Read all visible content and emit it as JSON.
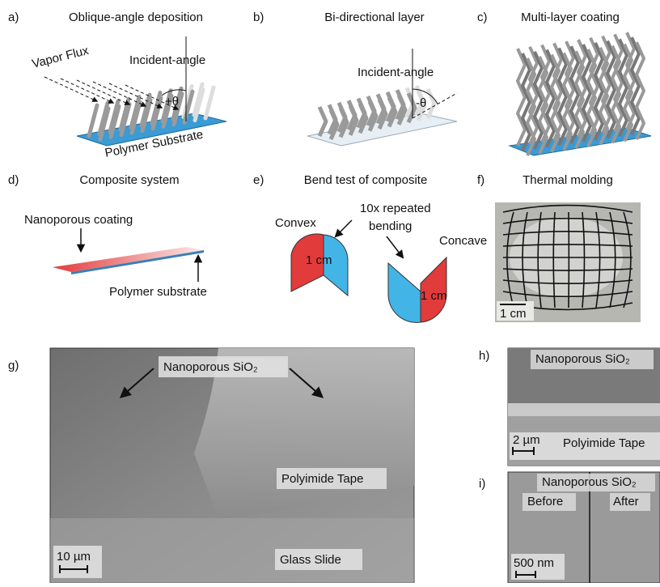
{
  "panels": [
    {
      "label": "a)",
      "title": "Oblique-angle deposition",
      "annotations": [
        "Vapor Flux",
        "Incident-angle",
        "+θ",
        "Polymer Substrate"
      ]
    },
    {
      "label": "b)",
      "title": "Bi-directional layer",
      "annotations": [
        "Incident-angle",
        "-θ"
      ]
    },
    {
      "label": "c)",
      "title": "Multi-layer coating"
    },
    {
      "label": "d)",
      "title": "Composite system",
      "annotations": [
        "Nanoporous coating",
        "Polymer substrate"
      ]
    },
    {
      "label": "e)",
      "title": "Bend test of composite",
      "annotations": [
        "10x repeated",
        "bending",
        "Convex",
        "Concave",
        "1 cm",
        "1 cm"
      ]
    },
    {
      "label": "f)",
      "title": "Thermal molding",
      "annotations": [
        "1 cm"
      ]
    },
    {
      "label": "g)",
      "annotations": [
        "Nanoporous SiO₂",
        "Polyimide Tape",
        "Glass Slide",
        "10 µm"
      ]
    },
    {
      "label": "h)",
      "annotations": [
        "Nanoporous SiO₂",
        "2 µm",
        "Polyimide Tape"
      ]
    },
    {
      "label": "i)",
      "annotations": [
        "Nanoporous SiO₂",
        "Before",
        "After",
        "500 nm"
      ]
    }
  ]
}
